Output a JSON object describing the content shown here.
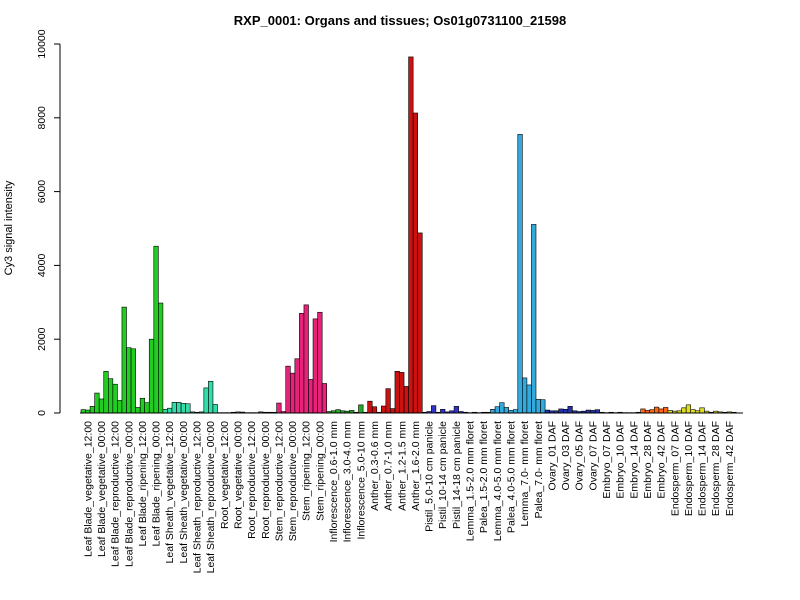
{
  "chart_data": {
    "type": "bar",
    "title": "RXP_0001: Organs and tissues; Os01g0731100_21598",
    "xlabel": "",
    "ylabel": "Cy3 signal intensity",
    "ylim": [
      0,
      10000
    ],
    "yticks": [
      0,
      2000,
      4000,
      6000,
      8000,
      10000
    ],
    "grid": false,
    "legend": "none",
    "groups": [
      {
        "label": "Leaf Blade_vegetative_12:00",
        "color": "#22cc22",
        "values": [
          90,
          80,
          180
        ]
      },
      {
        "label": "Leaf Blade_vegetative_00:00",
        "color": "#22cc22",
        "values": [
          540,
          380,
          1130
        ]
      },
      {
        "label": "Leaf Blade_reproductive_12:00",
        "color": "#22cc22",
        "values": [
          930,
          780,
          340
        ]
      },
      {
        "label": "Leaf Blade_reproductive_00:00",
        "color": "#22cc22",
        "values": [
          2870,
          1770,
          1740
        ]
      },
      {
        "label": "Leaf Blade_ripening_12:00",
        "color": "#22cc22",
        "values": [
          150,
          400,
          280
        ]
      },
      {
        "label": "Leaf Blade_ripening_00:00",
        "color": "#22cc22",
        "values": [
          2000,
          4520,
          2980
        ]
      },
      {
        "label": "Leaf Sheath_vegetative_12:00",
        "color": "#33ddaa",
        "values": [
          100,
          130,
          290
        ]
      },
      {
        "label": "Leaf Sheath_vegetative_00:00",
        "color": "#33ddaa",
        "values": [
          290,
          260,
          250
        ]
      },
      {
        "label": "Leaf Sheath_reproductive_12:00",
        "color": "#33ddaa",
        "values": [
          30,
          20,
          30
        ]
      },
      {
        "label": "Leaf Sheath_reproductive_00:00",
        "color": "#33ddaa",
        "values": [
          680,
          860,
          230
        ]
      },
      {
        "label": "Root_vegetative_12:00",
        "color": "#777777",
        "values": [
          10,
          10,
          10
        ]
      },
      {
        "label": "Root_vegetative_00:00",
        "color": "#777777",
        "values": [
          20,
          30,
          25
        ]
      },
      {
        "label": "Root_reproductive_12:00",
        "color": "#777777",
        "values": [
          10,
          10,
          10
        ]
      },
      {
        "label": "Root_reproductive_00:00",
        "color": "#777777",
        "values": [
          30,
          20,
          20
        ]
      },
      {
        "label": "Stem_reproductive_12:00",
        "color": "#e8227a",
        "values": [
          20,
          270,
          40
        ]
      },
      {
        "label": "Stem_reproductive_00:00",
        "color": "#e8227a",
        "values": [
          1270,
          1080,
          1470
        ]
      },
      {
        "label": "Stem_ripening_12:00",
        "color": "#e8227a",
        "values": [
          2700,
          2930,
          910
        ]
      },
      {
        "label": "Stem_ripening_00:00",
        "color": "#e8227a",
        "values": [
          2550,
          2730,
          800
        ]
      },
      {
        "label": "Inflorescence_0.6-1.0 mm",
        "color": "#22aa22",
        "values": [
          40,
          60,
          90
        ]
      },
      {
        "label": "Inflorescence_3.0-4.0 mm",
        "color": "#22aa22",
        "values": [
          60,
          50,
          70
        ]
      },
      {
        "label": "Inflorescence_5.0-10 mm",
        "color": "#22aa22",
        "values": [
          20,
          220,
          20
        ]
      },
      {
        "label": "Anther_0.3-0.6 mm",
        "color": "#cc1111",
        "values": [
          320,
          170,
          20
        ]
      },
      {
        "label": "Anther_0.7-1.0 mm",
        "color": "#cc1111",
        "values": [
          190,
          660,
          120
        ]
      },
      {
        "label": "Anther_1.2-1.5 mm",
        "color": "#cc1111",
        "values": [
          1130,
          1100,
          720
        ]
      },
      {
        "label": "Anther_1.6-2.0 mm",
        "color": "#cc1111",
        "values": [
          9650,
          8130,
          4880
        ]
      },
      {
        "label": "Pistil_5.0-10 cm panicle",
        "color": "#3333cc",
        "values": [
          20,
          40,
          200
        ]
      },
      {
        "label": "Pistil_10-14 cm panicle",
        "color": "#3333cc",
        "values": [
          20,
          100,
          30
        ]
      },
      {
        "label": "Pistil_14-18 cm panicle",
        "color": "#3333cc",
        "values": [
          60,
          180,
          40
        ]
      },
      {
        "label": "Lemma_1.5-2.0 mm floret",
        "color": "#33aadd",
        "values": [
          20,
          10,
          20
        ]
      },
      {
        "label": "Palea_1.5-2.0 mm floret",
        "color": "#33aadd",
        "values": [
          10,
          20,
          20
        ]
      },
      {
        "label": "Lemma_4.0-5.0 mm floret",
        "color": "#33aadd",
        "values": [
          100,
          170,
          280
        ]
      },
      {
        "label": "Palea_4.0-5.0 mm floret",
        "color": "#33aadd",
        "values": [
          150,
          70,
          90
        ]
      },
      {
        "label": "Lemma_7.0- mm floret",
        "color": "#33aadd",
        "values": [
          7550,
          950,
          760
        ]
      },
      {
        "label": "Palea_7.0- mm floret",
        "color": "#33aadd",
        "values": [
          5110,
          370,
          360
        ]
      },
      {
        "label": "Ovary_01 DAF",
        "color": "#2233aa",
        "values": [
          80,
          60,
          60
        ]
      },
      {
        "label": "Ovary_03 DAF",
        "color": "#2233aa",
        "values": [
          110,
          100,
          180
        ]
      },
      {
        "label": "Ovary_05 DAF",
        "color": "#2233aa",
        "values": [
          60,
          40,
          50
        ]
      },
      {
        "label": "Ovary_07 DAF",
        "color": "#2233aa",
        "values": [
          80,
          70,
          90
        ]
      },
      {
        "label": "Embryo_07 DAF",
        "color": "#ff6611",
        "values": [
          20,
          10,
          20
        ]
      },
      {
        "label": "Embryo_10 DAF",
        "color": "#ff6611",
        "values": [
          10,
          20,
          10
        ]
      },
      {
        "label": "Embryo_14 DAF",
        "color": "#ff6611",
        "values": [
          10,
          10,
          20
        ]
      },
      {
        "label": "Embryo_28 DAF",
        "color": "#ff6611",
        "values": [
          110,
          70,
          90
        ]
      },
      {
        "label": "Embryo_42 DAF",
        "color": "#ff6611",
        "values": [
          160,
          110,
          150
        ]
      },
      {
        "label": "Endosperm_07 DAF",
        "color": "#dddd22",
        "values": [
          70,
          50,
          60
        ]
      },
      {
        "label": "Endosperm_10 DAF",
        "color": "#dddd22",
        "values": [
          140,
          220,
          90
        ]
      },
      {
        "label": "Endosperm_14 DAF",
        "color": "#dddd22",
        "values": [
          60,
          140,
          50
        ]
      },
      {
        "label": "Endosperm_28 DAF",
        "color": "#dddd22",
        "values": [
          20,
          50,
          30
        ]
      },
      {
        "label": "Endosperm_42 DAF",
        "color": "#dddd22",
        "values": [
          20,
          30,
          20
        ]
      }
    ]
  }
}
